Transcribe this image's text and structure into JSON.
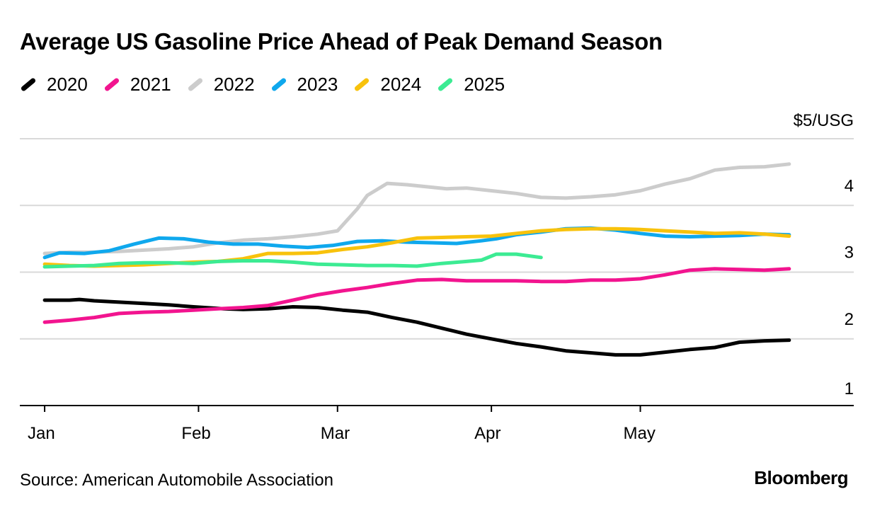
{
  "header": {
    "title": "Average US Gasoline Price Ahead of Peak Demand Season"
  },
  "footer": {
    "source": "Source: American Automobile Association",
    "brand": "Bloomberg"
  },
  "chart_data": {
    "type": "line",
    "title": "Average US Gasoline Price Ahead of Peak Demand Season",
    "xlabel": "",
    "ylabel": "",
    "unit_label": "$5/USG",
    "y_ticks": [
      1,
      2,
      3,
      4,
      5
    ],
    "y_tick_labels": [
      "1",
      "2",
      "3",
      "4",
      "$5/USG"
    ],
    "ylim": [
      1,
      5
    ],
    "x_ticks": [
      "Jan",
      "Feb",
      "Mar",
      "Apr",
      "May"
    ],
    "x_tick_days": [
      1,
      32,
      60,
      91,
      121
    ],
    "xlim": [
      -4,
      164
    ],
    "grid": true,
    "legend_position": "top-left",
    "series": [
      {
        "name": "2020",
        "color": "#000000",
        "x": [
          1,
          6,
          8,
          11,
          16,
          21,
          26,
          31,
          37,
          41,
          46,
          51,
          56,
          61,
          66,
          71,
          76,
          81,
          86,
          91,
          96,
          101,
          106,
          111,
          116,
          121,
          126,
          131,
          136,
          141,
          146,
          151
        ],
        "values": [
          2.58,
          2.58,
          2.59,
          2.57,
          2.55,
          2.53,
          2.51,
          2.48,
          2.45,
          2.44,
          2.45,
          2.48,
          2.47,
          2.43,
          2.4,
          2.32,
          2.25,
          2.16,
          2.07,
          2.0,
          1.93,
          1.88,
          1.82,
          1.79,
          1.76,
          1.76,
          1.8,
          1.84,
          1.87,
          1.95,
          1.97,
          1.98
        ]
      },
      {
        "name": "2021",
        "color": "#f2148f",
        "x": [
          1,
          6,
          11,
          16,
          21,
          26,
          31,
          36,
          41,
          46,
          51,
          56,
          61,
          66,
          71,
          76,
          81,
          86,
          91,
          96,
          101,
          106,
          111,
          116,
          121,
          126,
          131,
          136,
          141,
          146,
          151
        ],
        "values": [
          2.25,
          2.28,
          2.32,
          2.38,
          2.4,
          2.41,
          2.43,
          2.45,
          2.47,
          2.5,
          2.58,
          2.66,
          2.72,
          2.77,
          2.83,
          2.88,
          2.89,
          2.87,
          2.87,
          2.87,
          2.86,
          2.86,
          2.88,
          2.88,
          2.9,
          2.96,
          3.03,
          3.05,
          3.04,
          3.03,
          3.05
        ]
      },
      {
        "name": "2022",
        "color": "#cccccc",
        "x": [
          1,
          6,
          11,
          16,
          21,
          26,
          31,
          36,
          41,
          46,
          51,
          56,
          60,
          64,
          66,
          70,
          74,
          78,
          82,
          86,
          91,
          96,
          101,
          106,
          111,
          116,
          121,
          126,
          131,
          136,
          141,
          146,
          151
        ],
        "values": [
          3.28,
          3.3,
          3.3,
          3.31,
          3.33,
          3.35,
          3.38,
          3.44,
          3.48,
          3.5,
          3.53,
          3.57,
          3.62,
          3.95,
          4.15,
          4.33,
          4.31,
          4.28,
          4.25,
          4.26,
          4.22,
          4.18,
          4.12,
          4.11,
          4.13,
          4.16,
          4.22,
          4.32,
          4.4,
          4.53,
          4.57,
          4.58,
          4.62
        ]
      },
      {
        "name": "2023",
        "color": "#0fa8ed",
        "x": [
          1,
          4,
          9,
          14,
          19,
          24,
          29,
          34,
          39,
          44,
          49,
          54,
          59,
          64,
          69,
          74,
          79,
          84,
          89,
          92,
          96,
          101,
          106,
          111,
          116,
          121,
          126,
          131,
          136,
          141,
          146,
          151
        ],
        "values": [
          3.22,
          3.29,
          3.28,
          3.32,
          3.42,
          3.51,
          3.5,
          3.45,
          3.42,
          3.42,
          3.39,
          3.37,
          3.4,
          3.46,
          3.47,
          3.45,
          3.44,
          3.43,
          3.47,
          3.5,
          3.56,
          3.6,
          3.65,
          3.66,
          3.63,
          3.58,
          3.54,
          3.53,
          3.54,
          3.55,
          3.57,
          3.56
        ]
      },
      {
        "name": "2024",
        "color": "#f8c20c",
        "x": [
          1,
          6,
          11,
          16,
          21,
          26,
          31,
          36,
          41,
          46,
          51,
          56,
          61,
          66,
          71,
          76,
          81,
          86,
          91,
          96,
          101,
          106,
          111,
          116,
          121,
          126,
          131,
          136,
          141,
          146,
          151
        ],
        "values": [
          3.12,
          3.1,
          3.09,
          3.1,
          3.11,
          3.13,
          3.15,
          3.16,
          3.2,
          3.28,
          3.28,
          3.29,
          3.34,
          3.38,
          3.44,
          3.51,
          3.52,
          3.53,
          3.54,
          3.58,
          3.62,
          3.64,
          3.65,
          3.65,
          3.64,
          3.62,
          3.6,
          3.58,
          3.59,
          3.57,
          3.54
        ]
      },
      {
        "name": "2025",
        "color": "#3ceb93",
        "x": [
          1,
          6,
          11,
          16,
          21,
          26,
          31,
          36,
          41,
          46,
          51,
          56,
          61,
          66,
          71,
          76,
          81,
          86,
          89,
          92,
          96,
          101
        ],
        "values": [
          3.08,
          3.09,
          3.1,
          3.13,
          3.14,
          3.14,
          3.13,
          3.16,
          3.17,
          3.17,
          3.15,
          3.12,
          3.11,
          3.1,
          3.1,
          3.09,
          3.13,
          3.16,
          3.18,
          3.27,
          3.27,
          3.22
        ]
      }
    ]
  }
}
